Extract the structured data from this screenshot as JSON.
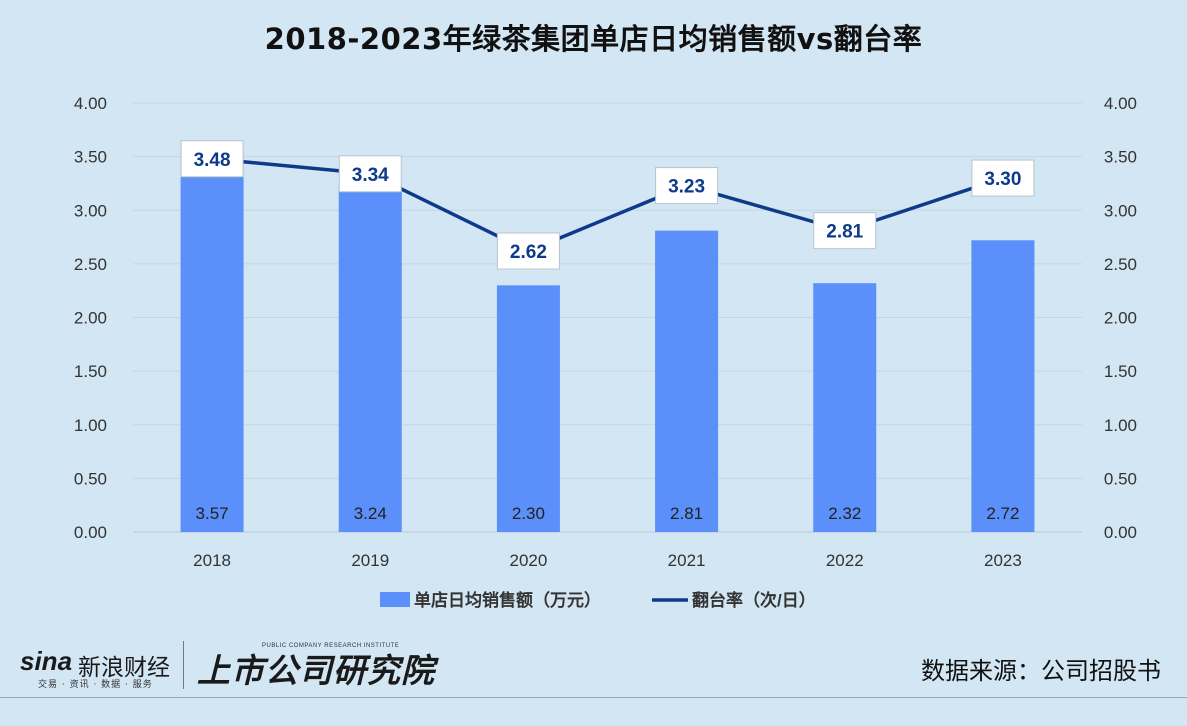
{
  "chart_data": {
    "type": "bar+line",
    "title": "2018-2023年绿茶集团单店日均销售额vs翻台率",
    "categories": [
      "2018",
      "2019",
      "2020",
      "2021",
      "2022",
      "2023"
    ],
    "series": [
      {
        "name": "单店日均销售额（万元）",
        "type": "bar",
        "axis": "left",
        "color": "#5b8ff9",
        "values": [
          3.57,
          3.24,
          2.3,
          2.81,
          2.32,
          2.72
        ]
      },
      {
        "name": "翻台率（次/日）",
        "type": "line",
        "axis": "right",
        "color": "#0d3a8a",
        "values": [
          3.48,
          3.34,
          2.62,
          3.23,
          2.81,
          3.3
        ]
      }
    ],
    "ylim": [
      0,
      4
    ],
    "y2lim": [
      0,
      4
    ],
    "yticks": [
      "0.00",
      "0.50",
      "1.00",
      "1.50",
      "2.00",
      "2.50",
      "3.00",
      "3.50",
      "4.00"
    ],
    "grid": true,
    "legend": "bottom"
  },
  "footer": {
    "sina_logo_latin": "sina",
    "sina_logo_cn": "新浪财经",
    "sina_sub": "交易 · 资讯 · 数据 · 服务",
    "institute_name": "上市公司研究院",
    "institute_en": "PUBLIC COMPANY RESEARCH INSTITUTE",
    "source": "数据来源：公司招股书"
  },
  "colors": {
    "background": "#d3e6f3",
    "bar": "#5b8ff9",
    "line": "#0d3a8a",
    "label_box": "#ffffff"
  }
}
